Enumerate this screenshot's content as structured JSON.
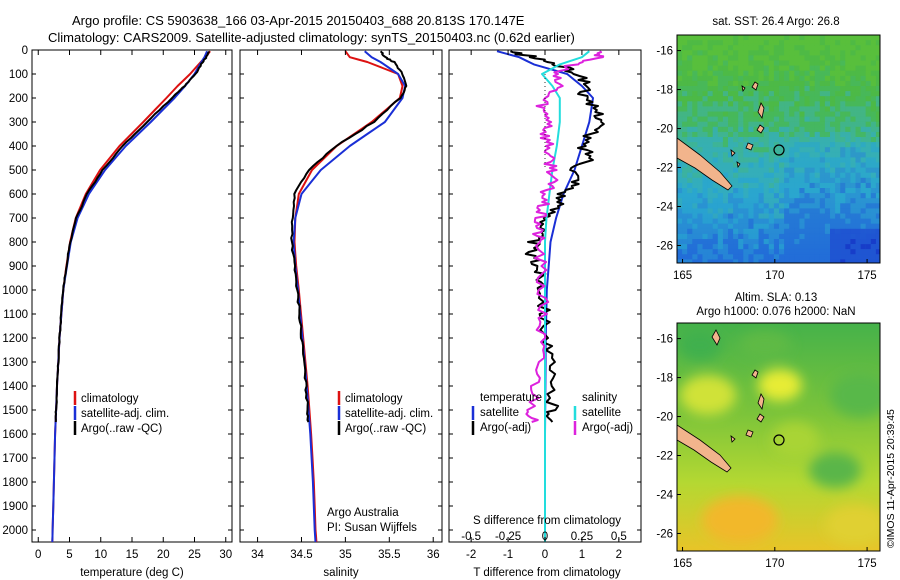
{
  "title": {
    "line1": "Argo profile: CS 5903638_166 03-Apr-2015 20150403_688 20.813S 170.147E",
    "line2": "Climatology: CARS2009. Satellite-adjusted climatology: synTS_20150403.nc (0.62d earlier)"
  },
  "credit": "©IMOS 11-Apr-2015 20:39:45",
  "colors": {
    "climatology": "#dd1111",
    "satellite": "#1a2fd6",
    "argo": "#000000",
    "satellite_diff": "#22dddd",
    "argo_diff": "#dd22dd",
    "land": "#f2b48c"
  },
  "chart_data": [
    {
      "type": "line",
      "name": "temperature-profile",
      "xlabel": "temperature (deg C)",
      "ylabel": "",
      "xlim": [
        -1,
        31
      ],
      "ylim": [
        2050,
        0
      ],
      "xticks": [
        0,
        5,
        10,
        15,
        20,
        25,
        30
      ],
      "yticks": [
        0,
        100,
        200,
        300,
        400,
        500,
        600,
        700,
        800,
        900,
        1000,
        1100,
        1200,
        1300,
        1400,
        1500,
        1600,
        1700,
        1800,
        1900,
        2000
      ],
      "legend": [
        "climatology",
        "satellite-adj. clim.",
        "Argo(..raw -QC)"
      ],
      "series": [
        {
          "name": "climatology",
          "color": "#dd1111",
          "depth": [
            5,
            30,
            50,
            100,
            150,
            200,
            300,
            400,
            500,
            600,
            700,
            800,
            900,
            1000,
            1200,
            1400,
            1600,
            1800,
            2000,
            2050
          ],
          "values": [
            27.5,
            26.8,
            26.0,
            24.3,
            22.3,
            20.5,
            16.8,
            13.0,
            9.9,
            7.6,
            6.0,
            5.1,
            4.5,
            4.0,
            3.4,
            3.0,
            2.7,
            2.5,
            2.3,
            2.25
          ]
        },
        {
          "name": "satellite-adj. clim.",
          "color": "#1a2fd6",
          "depth": [
            5,
            30,
            50,
            100,
            150,
            200,
            300,
            400,
            500,
            600,
            700,
            800,
            900,
            1000,
            1200,
            1400,
            1600,
            1800,
            2000,
            2050
          ],
          "values": [
            27.0,
            26.6,
            26.1,
            25.0,
            23.5,
            21.8,
            18.0,
            14.0,
            10.7,
            8.1,
            6.3,
            5.2,
            4.6,
            4.0,
            3.4,
            3.0,
            2.7,
            2.5,
            2.3,
            2.25
          ]
        },
        {
          "name": "Argo(..raw -QC)",
          "color": "#000000",
          "depth": [
            5,
            30,
            50,
            100,
            150,
            200,
            300,
            400,
            500,
            600,
            700,
            800,
            900,
            1000,
            1100,
            1200,
            1300,
            1400,
            1500,
            1550
          ],
          "values": [
            27.3,
            26.9,
            26.3,
            25.2,
            23.4,
            21.4,
            17.4,
            13.5,
            10.3,
            7.8,
            6.1,
            5.1,
            4.5,
            4.0,
            3.7,
            3.4,
            3.2,
            3.0,
            2.85,
            2.8
          ]
        }
      ]
    },
    {
      "type": "line",
      "name": "salinity-profile",
      "xlabel": "salinity",
      "xlim": [
        33.8,
        36.1
      ],
      "ylim": [
        2050,
        0
      ],
      "xticks": [
        34,
        34.5,
        35,
        35.5,
        36
      ],
      "legend": [
        "climatology",
        "satellite-adj. clim.",
        "Argo(..raw -QC)"
      ],
      "annotation": [
        "Argo Australia",
        "PI: Susan Wijffels"
      ],
      "series": [
        {
          "name": "climatology",
          "color": "#dd1111",
          "depth": [
            5,
            30,
            50,
            100,
            150,
            200,
            300,
            400,
            500,
            600,
            700,
            800,
            900,
            1000,
            1200,
            1400,
            1600,
            1800,
            2000,
            2050
          ],
          "values": [
            35.0,
            35.05,
            35.25,
            35.6,
            35.65,
            35.62,
            35.3,
            34.9,
            34.62,
            34.47,
            34.43,
            34.42,
            34.44,
            34.47,
            34.52,
            34.57,
            34.61,
            34.64,
            34.66,
            34.67
          ]
        },
        {
          "name": "satellite-adj. clim.",
          "color": "#1a2fd6",
          "depth": [
            5,
            30,
            50,
            100,
            150,
            200,
            300,
            400,
            500,
            600,
            700,
            800,
            900,
            1000,
            1200,
            1400,
            1600,
            1800,
            2000,
            2050
          ],
          "values": [
            35.22,
            35.3,
            35.4,
            35.6,
            35.68,
            35.65,
            35.45,
            35.05,
            34.72,
            34.5,
            34.43,
            34.41,
            34.43,
            34.46,
            34.51,
            34.56,
            34.6,
            34.63,
            34.65,
            34.66
          ]
        },
        {
          "name": "Argo(..raw -QC)",
          "color": "#000000",
          "depth": [
            5,
            30,
            50,
            100,
            150,
            200,
            300,
            400,
            500,
            600,
            700,
            800,
            900,
            1000,
            1100,
            1200,
            1300,
            1400,
            1500,
            1550
          ],
          "values": [
            35.4,
            35.45,
            35.55,
            35.65,
            35.7,
            35.62,
            35.32,
            34.9,
            34.58,
            34.42,
            34.4,
            34.39,
            34.42,
            34.45,
            34.48,
            34.5,
            34.53,
            34.55,
            34.57,
            34.58
          ]
        }
      ]
    },
    {
      "type": "line",
      "name": "difference-profile",
      "xlabel": "T difference from climatology",
      "xlabel_top": "S difference from climatology",
      "xlim": [
        -2.6,
        2.6
      ],
      "ylim": [
        2050,
        0
      ],
      "xticks": [
        -2,
        -1,
        0,
        1,
        2
      ],
      "xticks_s": [
        -0.5,
        -0.25,
        0,
        0.25,
        0.5
      ],
      "legend_titles": [
        "temperature",
        "salinity"
      ],
      "legend": [
        "satellite",
        "Argo(-adj)",
        "satellite",
        "Argo(-adj)"
      ],
      "series": [
        {
          "name": "temperature satellite",
          "color": "#1a2fd6",
          "depth": [
            5,
            30,
            60,
            100,
            150,
            200,
            300,
            400,
            500,
            600,
            700,
            800,
            1000,
            1200,
            1400,
            1600,
            1800,
            2000,
            2050
          ],
          "values": [
            -1.3,
            -0.7,
            -0.3,
            0.6,
            1.0,
            1.3,
            1.2,
            1.0,
            0.8,
            0.5,
            0.3,
            0.15,
            0.05,
            0.02,
            0.01,
            0.0,
            0.0,
            0.0,
            0.0
          ]
        },
        {
          "name": "temperature Argo(-adj)",
          "color": "#000000",
          "depth": [
            5,
            30,
            60,
            100,
            150,
            200,
            250,
            300,
            350,
            400,
            450,
            500,
            550,
            600,
            650,
            700,
            750,
            800,
            850,
            900,
            950,
            1000,
            1100,
            1200,
            1300,
            1400,
            1500,
            1550
          ],
          "values": [
            -1.0,
            -0.3,
            0.3,
            0.9,
            1.2,
            1.0,
            1.4,
            1.6,
            1.2,
            1.0,
            1.3,
            0.8,
            0.9,
            0.5,
            0.3,
            0.1,
            -0.1,
            -0.3,
            -0.4,
            -0.2,
            -0.1,
            -0.05,
            0.0,
            0.05,
            0.1,
            0.15,
            0.2,
            0.2
          ]
        },
        {
          "name": "salinity satellite",
          "color": "#22dddd",
          "depth": [
            5,
            30,
            60,
            100,
            150,
            200,
            300,
            400,
            500,
            600,
            700,
            800,
            1000,
            1200,
            1400,
            1600,
            1800,
            2000,
            2050
          ],
          "values": [
            0.3,
            0.25,
            0.1,
            -0.02,
            0.05,
            0.1,
            0.1,
            0.08,
            0.05,
            0.03,
            0.01,
            0.0,
            0.0,
            0.0,
            0.0,
            0.0,
            0.0,
            0.0,
            0.0
          ]
        },
        {
          "name": "salinity Argo(-adj)",
          "color": "#dd22dd",
          "depth": [
            5,
            30,
            60,
            100,
            150,
            200,
            250,
            300,
            350,
            400,
            450,
            500,
            550,
            600,
            650,
            700,
            750,
            800,
            900,
            1000,
            1100,
            1200,
            1300,
            1400,
            1500,
            1550
          ],
          "values": [
            0.4,
            0.35,
            0.2,
            0.05,
            0.1,
            0.0,
            -0.02,
            0.05,
            0.0,
            0.03,
            0.02,
            0.06,
            0.04,
            0.0,
            -0.02,
            -0.04,
            -0.05,
            -0.04,
            -0.03,
            -0.02,
            -0.02,
            -0.03,
            -0.04,
            -0.06,
            -0.08,
            -0.09
          ]
        }
      ]
    },
    {
      "type": "heatmap",
      "name": "sst-map",
      "title": "sat. SST: 26.4  Argo: 26.8",
      "xlim": [
        164.7,
        175.7
      ],
      "ylim": [
        -26.9,
        -15.2
      ],
      "xticks": [
        165,
        170,
        175
      ],
      "yticks": [
        -16,
        -18,
        -20,
        -22,
        -24,
        -26
      ],
      "marker": {
        "lon": 170.147,
        "lat": -20.813
      }
    },
    {
      "type": "heatmap",
      "name": "sla-map",
      "title": "Altim. SLA: 0.13",
      "subtitle": "Argo h1000: 0.076  h2000: NaN",
      "xlim": [
        164.7,
        175.7
      ],
      "ylim": [
        -26.9,
        -15.2
      ],
      "xticks": [
        165,
        170,
        175
      ],
      "yticks": [
        -16,
        -18,
        -20,
        -22,
        -24,
        -26
      ],
      "marker": {
        "lon": 170.147,
        "lat": -20.813
      }
    }
  ]
}
